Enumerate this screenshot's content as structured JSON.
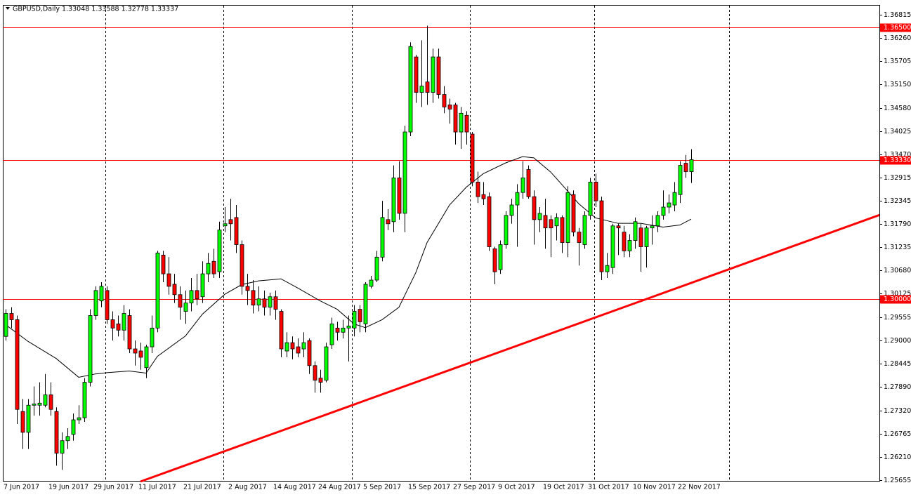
{
  "chart_data": {
    "type": "candlestick",
    "title": "GBPUSD,Daily  1.33048 1.33588 1.32778 1.33337",
    "categories": [
      "7 Jun 2017",
      null,
      null,
      null,
      null,
      null,
      null,
      null,
      "19 Jun 2017",
      null,
      null,
      null,
      null,
      null,
      null,
      null,
      "29 Jun 2017",
      null,
      null,
      null,
      null,
      null,
      null,
      null,
      "11 Jul 2017",
      null,
      null,
      null,
      null,
      null,
      null,
      null,
      "21 Jul 2017",
      null,
      null,
      null,
      null,
      null,
      null,
      null,
      "2 Aug 2017",
      null,
      null,
      null,
      null,
      null,
      null,
      null,
      "14 Aug 2017",
      null,
      null,
      null,
      null,
      null,
      null,
      null,
      "24 Aug 2017",
      null,
      null,
      null,
      null,
      null,
      null,
      null,
      "5 Sep 2017",
      null,
      null,
      null,
      null,
      null,
      null,
      null,
      "15 Sep 2017",
      null,
      null,
      null,
      null,
      null,
      null,
      null,
      "27 Sep 2017",
      null,
      null,
      null,
      null,
      null,
      null,
      null,
      "9 Oct 2017",
      null,
      null,
      null,
      null,
      null,
      null,
      null,
      "19 Oct 2017",
      null,
      null,
      null,
      null,
      null,
      null,
      null,
      "31 Oct 2017",
      null,
      null,
      null,
      null,
      null,
      null,
      null,
      "10 Nov 2017",
      null,
      null,
      null,
      null,
      null,
      null,
      null,
      "22 Nov 2017",
      null,
      null
    ],
    "open": [
      1.291,
      1.2965,
      1.295,
      1.273,
      1.268,
      1.2745,
      1.2745,
      1.2745,
      1.277,
      1.273,
      1.263,
      1.266,
      1.2675,
      1.271,
      1.2715,
      1.28,
      1.296,
      1.2995,
      1.302,
      1.295,
      1.294,
      1.2925,
      1.296,
      1.288,
      1.2875,
      1.2835,
      1.2885,
      1.293,
      1.3105,
      1.306,
      1.3035,
      1.301,
      1.297,
      1.299,
      1.302,
      1.3005,
      1.306,
      1.309,
      1.3065,
      1.3175,
      1.319,
      1.3195,
      1.313,
      1.303,
      1.302,
      1.2985,
      1.3,
      1.298,
      1.3005,
      1.297,
      1.2875,
      1.2895,
      1.2885,
      1.288,
      1.29,
      1.284,
      1.281,
      1.2805,
      1.289,
      1.293,
      1.292,
      1.293,
      1.293,
      1.2975,
      1.294,
      1.303,
      1.3045,
      1.31,
      1.319,
      1.3185,
      1.329,
      1.3205,
      1.34,
      1.358,
      1.3495,
      1.352,
      1.3495,
      1.358,
      1.349,
      1.3465,
      1.3465,
      1.34,
      1.344,
      1.3395,
      1.328,
      1.325,
      1.3245,
      1.312,
      1.307,
      1.313,
      1.32,
      1.3225,
      1.3255,
      1.331,
      1.3245,
      1.319,
      1.32,
      1.319,
      1.3175,
      1.3195,
      1.3135,
      1.325,
      1.316,
      1.313,
      1.32,
      1.328,
      1.3235,
      1.3065,
      1.3075,
      1.3175,
      1.316,
      1.3115,
      1.314,
      1.317,
      1.3125,
      1.317,
      1.3175,
      1.32,
      1.322,
      1.3225,
      1.325,
      1.3325,
      1.33048
    ],
    "high": [
      1.2975,
      1.298,
      1.296,
      1.276,
      1.276,
      1.279,
      1.28,
      1.282,
      1.28,
      1.274,
      1.268,
      1.269,
      1.2725,
      1.2745,
      1.281,
      1.2975,
      1.303,
      1.304,
      1.303,
      1.297,
      1.296,
      1.2985,
      1.2975,
      1.29,
      1.2895,
      1.289,
      1.296,
      1.3115,
      1.3115,
      1.31,
      1.306,
      1.303,
      1.302,
      1.305,
      1.306,
      1.309,
      1.311,
      1.312,
      1.3185,
      1.322,
      1.324,
      1.3225,
      1.314,
      1.306,
      1.3045,
      1.303,
      1.302,
      1.3015,
      1.302,
      1.2975,
      1.292,
      1.291,
      1.2905,
      1.292,
      1.2905,
      1.285,
      1.283,
      1.2895,
      1.2955,
      1.2945,
      1.295,
      1.296,
      1.2985,
      1.2985,
      1.304,
      1.3055,
      1.3115,
      1.3235,
      1.3215,
      1.332,
      1.333,
      1.3415,
      1.3615,
      1.3585,
      1.362,
      1.3655,
      1.36,
      1.36,
      1.351,
      1.348,
      1.347,
      1.346,
      1.345,
      1.34,
      1.3305,
      1.328,
      1.3255,
      1.3125,
      1.314,
      1.321,
      1.324,
      1.3275,
      1.333,
      1.332,
      1.326,
      1.322,
      1.324,
      1.32,
      1.3205,
      1.32,
      1.327,
      1.326,
      1.317,
      1.321,
      1.329,
      1.33,
      1.3245,
      1.311,
      1.318,
      1.318,
      1.3175,
      1.3155,
      1.3195,
      1.318,
      1.3175,
      1.32,
      1.321,
      1.326,
      1.325,
      1.328,
      1.333,
      1.3345,
      1.33588
    ],
    "low": [
      1.29,
      1.293,
      1.27,
      1.264,
      1.264,
      1.272,
      1.272,
      1.274,
      1.272,
      1.26,
      1.259,
      1.264,
      1.266,
      1.27,
      1.2705,
      1.279,
      1.295,
      1.298,
      1.294,
      1.29,
      1.291,
      1.29,
      1.287,
      1.284,
      1.283,
      1.281,
      1.287,
      1.292,
      1.304,
      1.301,
      1.299,
      1.295,
      1.294,
      1.297,
      1.2985,
      1.299,
      1.304,
      1.305,
      1.305,
      1.316,
      1.314,
      1.311,
      1.301,
      1.2985,
      1.2965,
      1.297,
      1.296,
      1.296,
      1.295,
      1.286,
      1.286,
      1.2855,
      1.286,
      1.286,
      1.282,
      1.2775,
      1.2775,
      1.28,
      1.288,
      1.29,
      1.2905,
      1.285,
      1.291,
      1.292,
      1.292,
      1.3025,
      1.304,
      1.309,
      1.3165,
      1.316,
      1.319,
      1.316,
      1.339,
      1.347,
      1.346,
      1.3465,
      1.347,
      1.348,
      1.3445,
      1.342,
      1.337,
      1.336,
      1.337,
      1.327,
      1.323,
      1.3225,
      1.3115,
      1.3035,
      1.306,
      1.312,
      1.318,
      1.3125,
      1.324,
      1.324,
      1.313,
      1.316,
      1.312,
      1.31,
      1.314,
      1.311,
      1.31,
      1.315,
      1.308,
      1.312,
      1.319,
      1.322,
      1.3045,
      1.305,
      1.306,
      1.3105,
      1.31,
      1.31,
      1.312,
      1.3065,
      1.3075,
      1.313,
      1.316,
      1.319,
      1.3205,
      1.321,
      1.323,
      1.329,
      1.32778
    ],
    "close": [
      1.2965,
      1.295,
      1.2735,
      1.268,
      1.2745,
      1.2748,
      1.275,
      1.277,
      1.2735,
      1.263,
      1.266,
      1.267,
      1.271,
      1.2715,
      1.28,
      1.296,
      1.302,
      1.303,
      1.295,
      1.293,
      1.2925,
      1.2965,
      1.288,
      1.287,
      1.286,
      1.2885,
      1.293,
      1.311,
      1.306,
      1.303,
      1.301,
      1.298,
      1.299,
      1.302,
      1.3,
      1.306,
      1.3085,
      1.306,
      1.3165,
      1.318,
      1.318,
      1.313,
      1.303,
      1.302,
      1.2985,
      1.3,
      1.298,
      1.3005,
      1.2975,
      1.288,
      1.2895,
      1.288,
      1.287,
      1.2895,
      1.284,
      1.2805,
      1.28,
      1.2885,
      1.294,
      1.292,
      1.293,
      1.2935,
      1.297,
      1.2945,
      1.3035,
      1.3045,
      1.31,
      1.3195,
      1.318,
      1.329,
      1.3205,
      1.34,
      1.3605,
      1.3495,
      1.351,
      1.3495,
      1.358,
      1.349,
      1.346,
      1.3455,
      1.34,
      1.3445,
      1.34,
      1.328,
      1.3245,
      1.324,
      1.3125,
      1.3065,
      1.313,
      1.32,
      1.3225,
      1.3255,
      1.329,
      1.3245,
      1.319,
      1.3205,
      1.317,
      1.317,
      1.3195,
      1.3135,
      1.3255,
      1.316,
      1.3135,
      1.32,
      1.328,
      1.3235,
      1.3065,
      1.308,
      1.3175,
      1.317,
      1.3115,
      1.314,
      1.3185,
      1.3125,
      1.317,
      1.3175,
      1.32,
      1.322,
      1.323,
      1.3255,
      1.332,
      1.3305,
      1.33337
    ],
    "up_color": "#00ff00",
    "down_color": "#ff0000",
    "xlim": [
      -0.5,
      155.5
    ],
    "ylim": [
      1.2562,
      1.3703
    ],
    "yticks": [
      1.36815,
      {
        "value": 1.3626,
        "label": "1.36260"
      },
      1.35705,
      {
        "value": 1.3515,
        "label": "1.35150"
      },
      {
        "value": 1.3458,
        "label": "1.34580"
      },
      1.34025,
      {
        "value": 1.3347,
        "label": "1.33470"
      },
      1.32915,
      1.32345,
      {
        "value": 1.3179,
        "label": "1.31790"
      },
      1.31235,
      {
        "value": 1.3068,
        "label": "1.30680"
      },
      1.30125,
      1.29555,
      {
        "value": 1.29,
        "label": "1.29000"
      },
      1.28445,
      {
        "value": 1.2789,
        "label": "1.27890"
      },
      {
        "value": 1.2732,
        "label": "1.27320"
      },
      1.26765,
      {
        "value": 1.2621,
        "label": "1.26210"
      },
      1.25655
    ],
    "levels": {
      "values": [
        1.365,
        1.3333,
        1.3
      ],
      "labels": [
        "1.36500",
        "1.33330",
        "1.30000"
      ],
      "color": "#ff0000"
    },
    "trendline": {
      "x": [
        24,
        155.5
      ],
      "values": [
        1.2562,
        1.3201
      ],
      "color": "#ff0000"
    },
    "ma": {
      "x": [
        0,
        4,
        9,
        13,
        16,
        18,
        22,
        25,
        27,
        32,
        35,
        39,
        42,
        45,
        49,
        52,
        56,
        59,
        62,
        64,
        67,
        70,
        73,
        75,
        79,
        82,
        85,
        89,
        92,
        94,
        97,
        99,
        102,
        105,
        109,
        113,
        117,
        120,
        122
      ],
      "values": [
        1.2938,
        1.2898,
        1.2857,
        1.2812,
        1.282,
        1.2823,
        1.2827,
        1.2822,
        1.2862,
        1.2911,
        1.2963,
        1.3011,
        1.3034,
        1.3043,
        1.3048,
        1.3026,
        1.2995,
        1.2975,
        1.294,
        1.2931,
        1.295,
        1.298,
        1.3063,
        1.3135,
        1.3225,
        1.3268,
        1.33,
        1.3326,
        1.3341,
        1.3338,
        1.3304,
        1.3274,
        1.3228,
        1.3194,
        1.3181,
        1.3181,
        1.3172,
        1.3177,
        1.3191
      ],
      "color": "#000000"
    }
  }
}
